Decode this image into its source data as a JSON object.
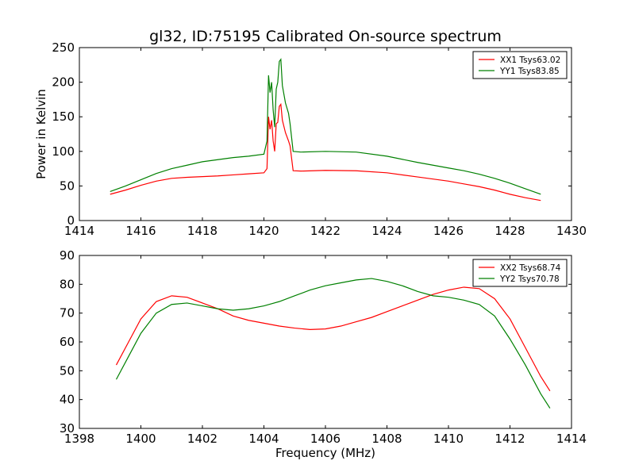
{
  "title": "gl32, ID:75195 Calibrated On-source spectrum",
  "chart_data": [
    {
      "type": "line",
      "ylabel": "Power in Kelvin",
      "xlabel": "",
      "xlim": [
        1414,
        1430
      ],
      "ylim": [
        0,
        250
      ],
      "xticks": [
        1414,
        1416,
        1418,
        1420,
        1422,
        1424,
        1426,
        1428,
        1430
      ],
      "yticks": [
        0,
        50,
        100,
        150,
        200,
        250
      ],
      "legend_position": "top-right",
      "grid": false,
      "series": [
        {
          "name": "XX1 Tsys63.02",
          "color": "#ff0000",
          "points": [
            [
              1415.0,
              38
            ],
            [
              1415.5,
              44
            ],
            [
              1416.0,
              51
            ],
            [
              1416.5,
              57
            ],
            [
              1417.0,
              61
            ],
            [
              1417.5,
              62.5
            ],
            [
              1418.0,
              63.5
            ],
            [
              1418.5,
              64.5
            ],
            [
              1419.0,
              66
            ],
            [
              1419.5,
              67.5
            ],
            [
              1420.0,
              69
            ],
            [
              1420.1,
              75
            ],
            [
              1420.15,
              150
            ],
            [
              1420.2,
              132
            ],
            [
              1420.25,
              145
            ],
            [
              1420.3,
              115
            ],
            [
              1420.35,
              100
            ],
            [
              1420.4,
              140
            ],
            [
              1420.45,
              142
            ],
            [
              1420.5,
              165
            ],
            [
              1420.55,
              168
            ],
            [
              1420.6,
              145
            ],
            [
              1420.7,
              127
            ],
            [
              1420.8,
              115
            ],
            [
              1420.85,
              108
            ],
            [
              1420.95,
              72
            ],
            [
              1421.2,
              71.5
            ],
            [
              1422.0,
              72.5
            ],
            [
              1423.0,
              72
            ],
            [
              1424.0,
              69
            ],
            [
              1425.0,
              63
            ],
            [
              1426.0,
              57
            ],
            [
              1426.5,
              53
            ],
            [
              1427.0,
              49
            ],
            [
              1427.5,
              44
            ],
            [
              1428.0,
              38
            ],
            [
              1428.5,
              33
            ],
            [
              1429.0,
              29
            ]
          ]
        },
        {
          "name": "YY1 Tsys83.85",
          "color": "#008000",
          "points": [
            [
              1415.0,
              42
            ],
            [
              1415.5,
              50
            ],
            [
              1416.0,
              59
            ],
            [
              1416.5,
              68
            ],
            [
              1417.0,
              75
            ],
            [
              1417.5,
              80
            ],
            [
              1418.0,
              85
            ],
            [
              1418.5,
              88
            ],
            [
              1419.0,
              91
            ],
            [
              1419.5,
              93
            ],
            [
              1420.0,
              96
            ],
            [
              1420.1,
              115
            ],
            [
              1420.15,
              210
            ],
            [
              1420.2,
              185
            ],
            [
              1420.25,
              200
            ],
            [
              1420.3,
              160
            ],
            [
              1420.35,
              135
            ],
            [
              1420.4,
              190
            ],
            [
              1420.45,
              200
            ],
            [
              1420.5,
              230
            ],
            [
              1420.55,
              233
            ],
            [
              1420.6,
              195
            ],
            [
              1420.7,
              170
            ],
            [
              1420.8,
              155
            ],
            [
              1420.85,
              140
            ],
            [
              1420.95,
              100
            ],
            [
              1421.2,
              99
            ],
            [
              1422.0,
              100
            ],
            [
              1423.0,
              99
            ],
            [
              1424.0,
              93
            ],
            [
              1425.0,
              84
            ],
            [
              1426.0,
              76
            ],
            [
              1426.5,
              72
            ],
            [
              1427.0,
              67
            ],
            [
              1427.5,
              61
            ],
            [
              1428.0,
              54
            ],
            [
              1428.5,
              46
            ],
            [
              1429.0,
              38
            ]
          ]
        }
      ]
    },
    {
      "type": "line",
      "ylabel": "",
      "xlabel": "Frequency (MHz)",
      "xlim": [
        1398,
        1414
      ],
      "ylim": [
        30,
        90
      ],
      "xticks": [
        1398,
        1400,
        1402,
        1404,
        1406,
        1408,
        1410,
        1412,
        1414
      ],
      "yticks": [
        30,
        40,
        50,
        60,
        70,
        80,
        90
      ],
      "legend_position": "top-right",
      "grid": false,
      "series": [
        {
          "name": "XX2 Tsys68.74",
          "color": "#ff0000",
          "points": [
            [
              1399.2,
              52
            ],
            [
              1399.6,
              60
            ],
            [
              1400.0,
              68
            ],
            [
              1400.5,
              74
            ],
            [
              1401.0,
              76
            ],
            [
              1401.5,
              75.5
            ],
            [
              1402.0,
              73.5
            ],
            [
              1402.5,
              71.5
            ],
            [
              1403.0,
              69
            ],
            [
              1403.5,
              67.5
            ],
            [
              1404.0,
              66.5
            ],
            [
              1404.5,
              65.5
            ],
            [
              1405.0,
              64.8
            ],
            [
              1405.5,
              64.3
            ],
            [
              1406.0,
              64.5
            ],
            [
              1406.5,
              65.5
            ],
            [
              1407.0,
              67
            ],
            [
              1407.5,
              68.5
            ],
            [
              1408.0,
              70.5
            ],
            [
              1408.5,
              72.5
            ],
            [
              1409.0,
              74.5
            ],
            [
              1409.5,
              76.5
            ],
            [
              1410.0,
              78
            ],
            [
              1410.5,
              79
            ],
            [
              1411.0,
              78.5
            ],
            [
              1411.5,
              75
            ],
            [
              1412.0,
              68
            ],
            [
              1412.5,
              58
            ],
            [
              1413.0,
              48
            ],
            [
              1413.3,
              43
            ]
          ]
        },
        {
          "name": "YY2 Tsys70.78",
          "color": "#008000",
          "points": [
            [
              1399.2,
              47
            ],
            [
              1399.6,
              55
            ],
            [
              1400.0,
              63
            ],
            [
              1400.5,
              70
            ],
            [
              1401.0,
              73
            ],
            [
              1401.5,
              73.5
            ],
            [
              1402.0,
              72.5
            ],
            [
              1402.5,
              71.5
            ],
            [
              1403.0,
              71
            ],
            [
              1403.5,
              71.5
            ],
            [
              1404.0,
              72.5
            ],
            [
              1404.5,
              74
            ],
            [
              1405.0,
              76
            ],
            [
              1405.5,
              78
            ],
            [
              1406.0,
              79.5
            ],
            [
              1406.5,
              80.5
            ],
            [
              1407.0,
              81.5
            ],
            [
              1407.5,
              82
            ],
            [
              1408.0,
              81
            ],
            [
              1408.5,
              79.5
            ],
            [
              1409.0,
              77.5
            ],
            [
              1409.5,
              76
            ],
            [
              1410.0,
              75.5
            ],
            [
              1410.5,
              74.5
            ],
            [
              1411.0,
              73
            ],
            [
              1411.5,
              69
            ],
            [
              1412.0,
              61
            ],
            [
              1412.5,
              52
            ],
            [
              1413.0,
              42
            ],
            [
              1413.3,
              37
            ]
          ]
        }
      ]
    }
  ]
}
